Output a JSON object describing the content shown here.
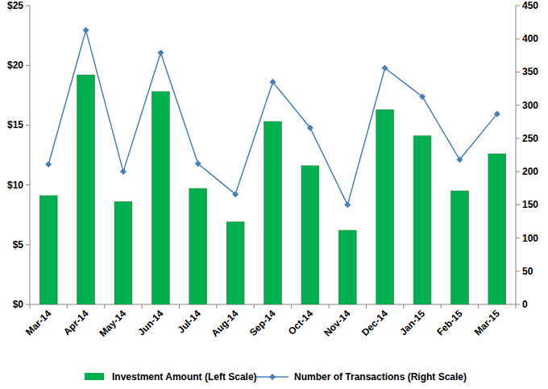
{
  "chart_data": {
    "type": "bar",
    "categories": [
      "Mar-14",
      "Apr-14",
      "May-14",
      "Jun-14",
      "Jul-14",
      "Aug-14",
      "Sep-14",
      "Oct-14",
      "Nov-14",
      "Dec-14",
      "Jan-15",
      "Feb-15",
      "Mar-15"
    ],
    "series": [
      {
        "name": "Investment Amount (Left Scale)",
        "type": "bar",
        "color": "#00b050",
        "values": [
          9.1,
          19.2,
          8.6,
          17.8,
          9.7,
          6.9,
          15.3,
          11.6,
          6.2,
          16.3,
          14.1,
          9.5,
          12.6
        ]
      },
      {
        "name": "Number of Transactions (Right Scale)",
        "type": "line",
        "color": "#4a7ebb",
        "marker": "diamond",
        "axis": "y2",
        "values": [
          211,
          413,
          200,
          379,
          212,
          166,
          335,
          266,
          150,
          356,
          313,
          218,
          287
        ]
      }
    ],
    "ylim": [
      0,
      25
    ],
    "yticks": [
      {
        "value": 0,
        "label": "$0"
      },
      {
        "value": 5,
        "label": "$5"
      },
      {
        "value": 10,
        "label": "$10"
      },
      {
        "value": 15,
        "label": "$15"
      },
      {
        "value": 20,
        "label": "$20"
      },
      {
        "value": 25,
        "label": "$25"
      }
    ],
    "y2lim": [
      0,
      450
    ],
    "y2ticks": [
      0,
      50,
      100,
      150,
      200,
      250,
      300,
      350,
      400,
      450
    ],
    "grid": false,
    "legend": "bottom"
  }
}
